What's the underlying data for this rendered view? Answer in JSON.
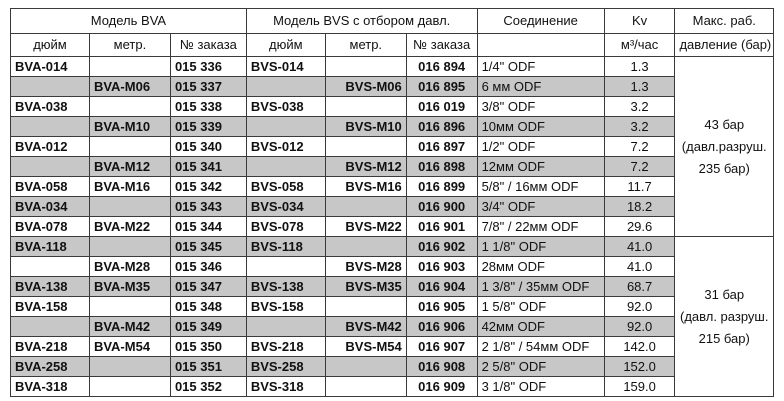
{
  "headers": {
    "bva_group": "Модель BVA",
    "bvs_group": "Модель BVS с отбором давл.",
    "connection": "Соединение",
    "kv": "Kv",
    "kv_unit": "м³/час",
    "max_pressure_line1": "Макс. раб.",
    "max_pressure_line2": "давление (бар)",
    "inch": "дюйм",
    "metric": "метр.",
    "order_no": "№ заказа"
  },
  "rows": [
    {
      "bva_inch": "BVA-014",
      "bva_metric": "",
      "bva_order": "015 336",
      "bvs_inch": "BVS-014",
      "bvs_metric": "",
      "bvs_order": "016 894",
      "connection": "1/4\" ODF",
      "kv": "1.3",
      "shaded": false
    },
    {
      "bva_inch": "",
      "bva_metric": "BVA-M06",
      "bva_order": "015 337",
      "bvs_inch": "",
      "bvs_metric": "BVS-M06",
      "bvs_order": "016 895",
      "connection": "6 мм ODF",
      "kv": "1.3",
      "shaded": true
    },
    {
      "bva_inch": "BVA-038",
      "bva_metric": "",
      "bva_order": "015 338",
      "bvs_inch": "BVS-038",
      "bvs_metric": "",
      "bvs_order": "016 019",
      "connection": "3/8\" ODF",
      "kv": "3.2",
      "shaded": false
    },
    {
      "bva_inch": "",
      "bva_metric": "BVA-M10",
      "bva_order": "015 339",
      "bvs_inch": "",
      "bvs_metric": "BVS-M10",
      "bvs_order": "016 896",
      "connection": "10мм ODF",
      "kv": "3.2",
      "shaded": true
    },
    {
      "bva_inch": "BVA-012",
      "bva_metric": "",
      "bva_order": "015 340",
      "bvs_inch": "BVS-012",
      "bvs_metric": "",
      "bvs_order": "016 897",
      "connection": "1/2\" ODF",
      "kv": "7.2",
      "shaded": false
    },
    {
      "bva_inch": "",
      "bva_metric": "BVA-M12",
      "bva_order": "015 341",
      "bvs_inch": "",
      "bvs_metric": "BVS-M12",
      "bvs_order": "016 898",
      "connection": "12мм ODF",
      "kv": "7.2",
      "shaded": true
    },
    {
      "bva_inch": "BVA-058",
      "bva_metric": "BVA-M16",
      "bva_order": "015 342",
      "bvs_inch": "BVS-058",
      "bvs_metric": "BVS-M16",
      "bvs_order": "016 899",
      "connection": "5/8\" / 16мм ODF",
      "kv": "11.7",
      "shaded": false
    },
    {
      "bva_inch": "BVA-034",
      "bva_metric": "",
      "bva_order": "015 343",
      "bvs_inch": "BVS-034",
      "bvs_metric": "",
      "bvs_order": "016 900",
      "connection": "3/4\" ODF",
      "kv": "18.2",
      "shaded": true
    },
    {
      "bva_inch": "BVA-078",
      "bva_metric": "BVA-M22",
      "bva_order": "015 344",
      "bvs_inch": "BVS-078",
      "bvs_metric": "BVS-M22",
      "bvs_order": "016 901",
      "connection": "7/8\" / 22мм ODF",
      "kv": "29.6",
      "shaded": false
    },
    {
      "bva_inch": "BVA-118",
      "bva_metric": "",
      "bva_order": "015 345",
      "bvs_inch": "BVS-118",
      "bvs_metric": "",
      "bvs_order": "016 902",
      "connection": "1 1/8\" ODF",
      "kv": "41.0",
      "shaded": true
    },
    {
      "bva_inch": "",
      "bva_metric": "BVA-M28",
      "bva_order": "015 346",
      "bvs_inch": "",
      "bvs_metric": "BVS-M28",
      "bvs_order": "016 903",
      "connection": "28мм ODF",
      "kv": "41.0",
      "shaded": false
    },
    {
      "bva_inch": "BVA-138",
      "bva_metric": "BVA-M35",
      "bva_order": "015 347",
      "bvs_inch": "BVS-138",
      "bvs_metric": "BVS-M35",
      "bvs_order": "016 904",
      "connection": "1 3/8\" / 35мм ODF",
      "kv": "68.7",
      "shaded": true
    },
    {
      "bva_inch": "BVA-158",
      "bva_metric": "",
      "bva_order": "015 348",
      "bvs_inch": "BVS-158",
      "bvs_metric": "",
      "bvs_order": "016 905",
      "connection": "1 5/8\" ODF",
      "kv": "92.0",
      "shaded": false
    },
    {
      "bva_inch": "",
      "bva_metric": "BVA-M42",
      "bva_order": "015 349",
      "bvs_inch": "",
      "bvs_metric": "BVS-M42",
      "bvs_order": "016 906",
      "connection": "42мм ODF",
      "kv": "92.0",
      "shaded": true
    },
    {
      "bva_inch": "BVA-218",
      "bva_metric": "BVA-M54",
      "bva_order": "015 350",
      "bvs_inch": "BVS-218",
      "bvs_metric": "BVS-M54",
      "bvs_order": "016 907",
      "connection": "2 1/8\" / 54мм ODF",
      "kv": "142.0",
      "shaded": false
    },
    {
      "bva_inch": "BVA-258",
      "bva_metric": "",
      "bva_order": "015 351",
      "bvs_inch": "BVS-258",
      "bvs_metric": "",
      "bvs_order": "016 908",
      "connection": "2 5/8\" ODF",
      "kv": "152.0",
      "shaded": true
    },
    {
      "bva_inch": "BVA-318",
      "bva_metric": "",
      "bva_order": "015 352",
      "bvs_inch": "BVS-318",
      "bvs_metric": "",
      "bvs_order": "016 909",
      "connection": "3 1/8\" ODF",
      "kv": "159.0",
      "shaded": false
    }
  ],
  "pressure_groups": [
    {
      "line1": "43 бар",
      "line2": "(давл.разруш.",
      "line3": "235 бар)"
    },
    {
      "line1": "31 бар",
      "line2": "(давл. разруш.",
      "line3": "215 бар)"
    }
  ],
  "colors": {
    "shade": "#c7c7c7",
    "border": "#3a3a3a"
  }
}
